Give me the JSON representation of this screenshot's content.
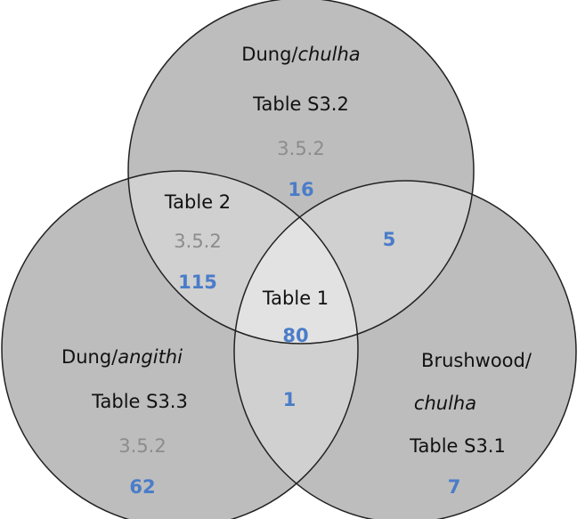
{
  "regions": [
    {
      "label": [
        "Dung/",
        "chulha"
      ],
      "table": "Table S3.2",
      "section": "3.5.2",
      "count": 16
    },
    {
      "table": "Table 2",
      "section": "3.5.2",
      "count": 115
    },
    {
      "count": 5
    },
    {
      "table": "Table 1",
      "count": 80
    },
    {
      "label": [
        "Dung/",
        "angithi"
      ],
      "table": "Table S3.3",
      "section": "3.5.2",
      "count": 62
    },
    {
      "count": 1
    },
    {
      "label": [
        "Brushwood/",
        "chulha"
      ],
      "table": "Table S3.1",
      "count": 7
    }
  ]
}
